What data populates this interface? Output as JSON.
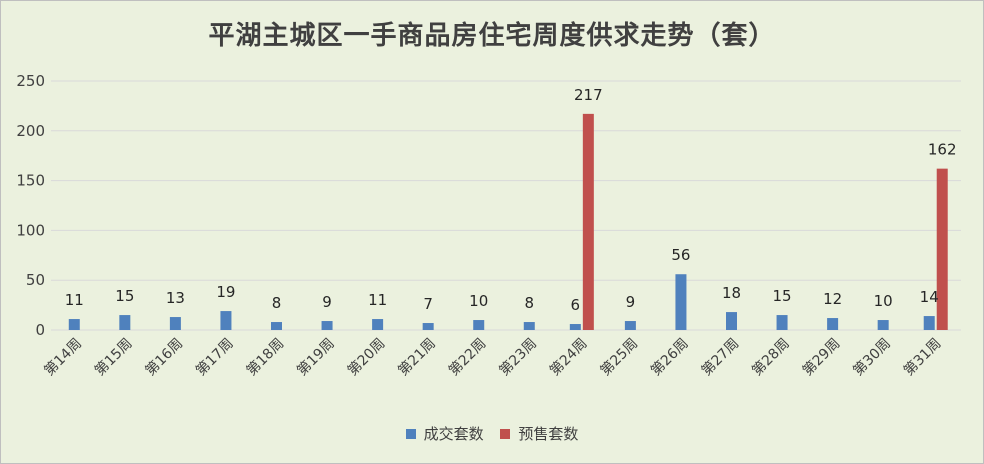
{
  "chart_data": {
    "type": "bar",
    "title": "平湖主城区一手商品房住宅周度供求走势（套）",
    "categories": [
      "第14周",
      "第15周",
      "第16周",
      "第17周",
      "第18周",
      "第19周",
      "第20周",
      "第21周",
      "第22周",
      "第23周",
      "第24周",
      "第25周",
      "第26周",
      "第27周",
      "第28周",
      "第29周",
      "第30周",
      "第31周"
    ],
    "series": [
      {
        "name": "成交套数",
        "color": "#4f81bd",
        "values": [
          11,
          15,
          13,
          19,
          8,
          9,
          11,
          7,
          10,
          8,
          6,
          9,
          56,
          18,
          15,
          12,
          10,
          14
        ]
      },
      {
        "name": "预售套数",
        "color": "#c0504d",
        "values": [
          null,
          null,
          null,
          null,
          null,
          null,
          null,
          null,
          null,
          null,
          217,
          null,
          null,
          null,
          null,
          null,
          null,
          162
        ]
      }
    ],
    "ylim": [
      0,
      250
    ],
    "yticks": [
      0,
      50,
      100,
      150,
      200,
      250
    ],
    "grid": true,
    "legend_position": "bottom"
  }
}
